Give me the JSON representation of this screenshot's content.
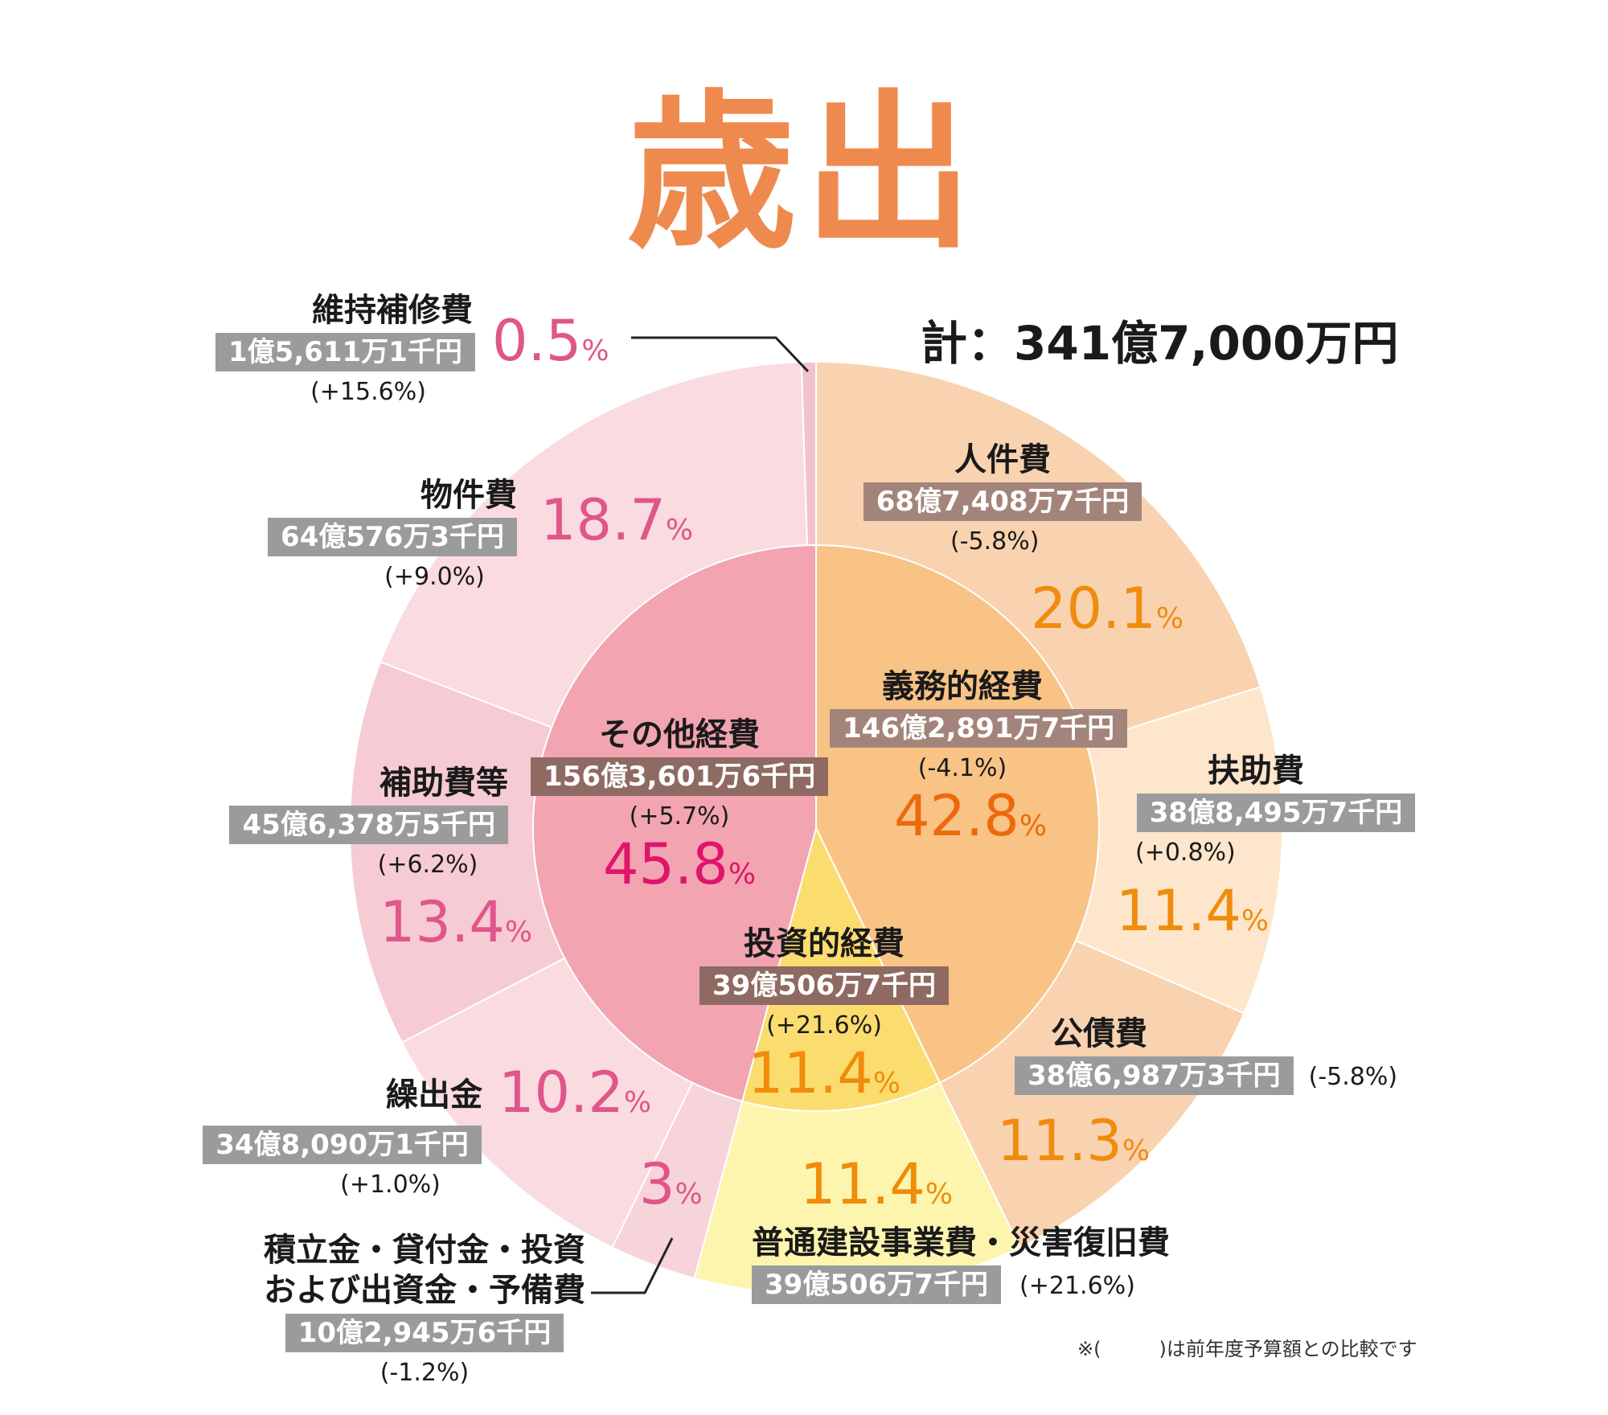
{
  "title": "歳出",
  "total": "計：341億7,000万円",
  "note": "※(　　　)は前年度予算額との比較です",
  "chart_data": {
    "type": "pie",
    "title": "歳出",
    "inner_ring": [
      {
        "name": "義務的経費",
        "amount": "146億2,891万7千円",
        "change": "(-4.1%)",
        "percent": 42.8
      },
      {
        "name": "投資的経費",
        "amount": "39億506万7千円",
        "change": "(+21.6%)",
        "percent": 11.4
      },
      {
        "name": "その他経費",
        "amount": "156億3,601万6千円",
        "change": "(+5.7%)",
        "percent": 45.8
      }
    ],
    "outer_ring": [
      {
        "name": "人件費",
        "amount": "68億7,408万7千円",
        "change": "(-5.8%)",
        "percent": 20.1
      },
      {
        "name": "扶助費",
        "amount": "38億8,495万7千円",
        "change": "(+0.8%)",
        "percent": 11.4
      },
      {
        "name": "公債費",
        "amount": "38億6,987万3千円",
        "change": "(-5.8%)",
        "percent": 11.3
      },
      {
        "name": "普通建設事業費・災害復旧費",
        "amount": "39億506万7千円",
        "change": "(+21.6%)",
        "percent": 11.4
      },
      {
        "name": "積立金・貸付金・投資および出資金・予備費",
        "amount": "10億2,945万6千円",
        "change": "(-1.2%)",
        "percent": 3.0
      },
      {
        "name": "繰出金",
        "amount": "34億8,090万1千円",
        "change": "(+1.0%)",
        "percent": 10.2
      },
      {
        "name": "補助費等",
        "amount": "45億6,378万5千円",
        "change": "(+6.2%)",
        "percent": 13.4
      },
      {
        "name": "物件費",
        "amount": "64億576万3千円",
        "change": "(+9.0%)",
        "percent": 18.7
      },
      {
        "name": "維持補修費",
        "amount": "1億5,611万1千円",
        "change": "(+15.6%)",
        "percent": 0.5
      }
    ],
    "colors": {
      "outer": [
        "#f9d2b0",
        "#fde6cc",
        "#f9d2b0",
        "#fdf5ae",
        "#f6d4da",
        "#f9dbe0",
        "#f6cbd3",
        "#f9dbe0",
        "#f3c3cc"
      ],
      "inner": [
        "#f8c385",
        "#fbdc6e",
        "#f2a4b1"
      ]
    }
  }
}
